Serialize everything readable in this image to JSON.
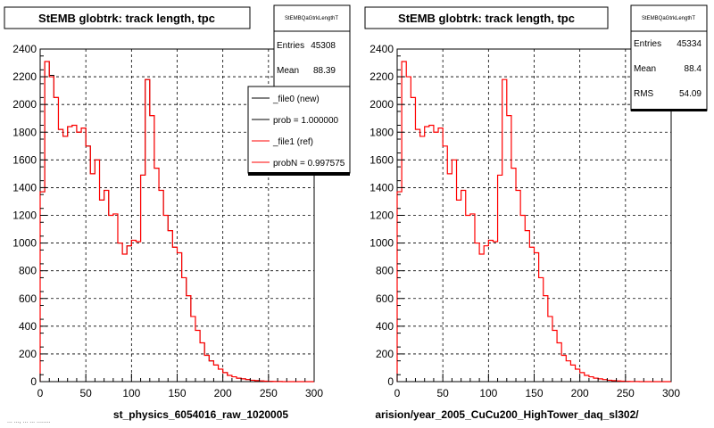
{
  "chart_data": [
    {
      "type": "bar",
      "title": "StEMB globtrk: track length, tpc",
      "xlabel": "st_physics_6054016_raw_1020005",
      "ylabel": "",
      "xlim": [
        0,
        300
      ],
      "ylim": [
        0,
        2400
      ],
      "grid": true,
      "xticks": [
        "0",
        "50",
        "100",
        "150",
        "200",
        "250",
        "300"
      ],
      "yticks": [
        "0",
        "200",
        "400",
        "600",
        "800",
        "1000",
        "1200",
        "1400",
        "1600",
        "1800",
        "2000",
        "2200",
        "2400"
      ],
      "stats_box": {
        "name": "StEMBQaGtrkLengthT",
        "rows": [
          {
            "label": "Entries",
            "value": "45308"
          },
          {
            "label": "Mean",
            "value": "88.39"
          }
        ]
      },
      "legend": {
        "placement": "right",
        "entries": [
          {
            "label": "_file0 (new)",
            "color": "#000000"
          },
          {
            "label": "prob = 1.000000",
            "color": "#000000"
          },
          {
            "label": "_file1 (ref)",
            "color": "#ff0000"
          },
          {
            "label": "probN = 0.997575",
            "color": "#ff0000"
          }
        ]
      },
      "bin_edges_start": 0,
      "bin_width": 5,
      "series": [
        {
          "name": "_file0 (new)",
          "color": "#000000",
          "values": [
            1370,
            2310,
            2210,
            2050,
            1820,
            1770,
            1840,
            1850,
            1800,
            1830,
            1700,
            1500,
            1600,
            1310,
            1380,
            1200,
            1210,
            1000,
            920,
            980,
            1020,
            1010,
            1490,
            2180,
            1920,
            1540,
            1380,
            1200,
            1090,
            970,
            930,
            750,
            620,
            470,
            370,
            280,
            190,
            150,
            120,
            90,
            65,
            45,
            35,
            25,
            20,
            15,
            10,
            7,
            5,
            3,
            2,
            1,
            1,
            0,
            0,
            0,
            0,
            0,
            0,
            0
          ]
        },
        {
          "name": "_file1 (ref)",
          "color": "#ff0000",
          "values": [
            1370,
            2310,
            2200,
            2050,
            1820,
            1770,
            1840,
            1850,
            1800,
            1830,
            1700,
            1500,
            1600,
            1310,
            1380,
            1200,
            1210,
            1000,
            920,
            980,
            1020,
            1010,
            1490,
            2180,
            1920,
            1540,
            1380,
            1200,
            1090,
            970,
            930,
            750,
            620,
            470,
            370,
            280,
            190,
            150,
            120,
            90,
            65,
            45,
            35,
            25,
            20,
            15,
            10,
            7,
            5,
            3,
            2,
            1,
            1,
            0,
            0,
            0,
            0,
            0,
            0,
            0
          ]
        }
      ]
    },
    {
      "type": "bar",
      "title": "StEMB globtrk: track length, tpc",
      "xlabel": "arision/year_2005_CuCu200_HighTower_daq_sl302/",
      "ylabel": "",
      "xlim": [
        0,
        300
      ],
      "ylim": [
        0,
        2400
      ],
      "grid": true,
      "xticks": [
        "0",
        "50",
        "100",
        "150",
        "200",
        "250",
        "300"
      ],
      "yticks": [
        "0",
        "200",
        "400",
        "600",
        "800",
        "1000",
        "1200",
        "1400",
        "1600",
        "1800",
        "2000",
        "2200",
        "2400"
      ],
      "stats_box": {
        "name": "StEMBQaGtrkLengthT",
        "rows": [
          {
            "label": "Entries",
            "value": "45334"
          },
          {
            "label": "Mean",
            "value": "88.4"
          },
          {
            "label": "RMS",
            "value": "54.09"
          }
        ]
      },
      "bin_edges_start": 0,
      "bin_width": 5,
      "series": [
        {
          "name": "",
          "color": "#ff0000",
          "values": [
            1370,
            2310,
            2200,
            2050,
            1820,
            1770,
            1840,
            1850,
            1800,
            1830,
            1700,
            1500,
            1600,
            1310,
            1380,
            1200,
            1210,
            1000,
            920,
            980,
            1020,
            1010,
            1490,
            2180,
            1920,
            1540,
            1380,
            1200,
            1090,
            970,
            930,
            750,
            620,
            470,
            370,
            280,
            190,
            150,
            120,
            90,
            65,
            45,
            35,
            25,
            20,
            15,
            10,
            7,
            5,
            3,
            2,
            1,
            1,
            0,
            0,
            0,
            0,
            0,
            0,
            0
          ]
        }
      ]
    }
  ],
  "footer_text": "... ..., ... ... ........"
}
